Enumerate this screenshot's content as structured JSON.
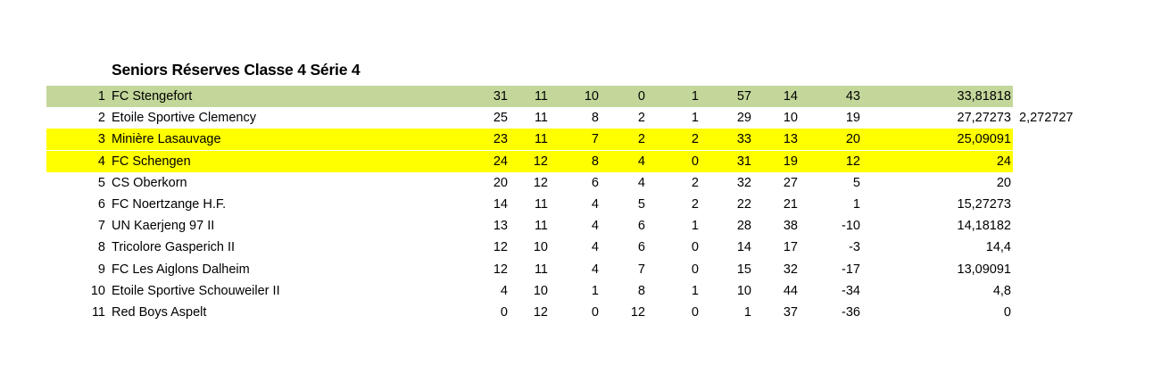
{
  "title": "Seniors Réserves Classe 4 Série 4",
  "colors": {
    "leader": "#c4d79b",
    "highlight": "#ffff00"
  },
  "rows": [
    {
      "rank": "1",
      "team": "FC Stengefort",
      "c1": "31",
      "c2": "11",
      "c3": "10",
      "c4": "0",
      "c5": "1",
      "c6": "57",
      "c7": "14",
      "c8": "43",
      "c9": "33,81818",
      "highlight": "green"
    },
    {
      "rank": "2",
      "team": "Etoile Sportive Clemency",
      "c1": "25",
      "c2": "11",
      "c3": "8",
      "c4": "2",
      "c5": "1",
      "c6": "29",
      "c7": "10",
      "c8": "19",
      "c9": "27,27273",
      "extra": "2,272727"
    },
    {
      "rank": "3",
      "team": "Minière Lasauvage",
      "c1": "23",
      "c2": "11",
      "c3": "7",
      "c4": "2",
      "c5": "2",
      "c6": "33",
      "c7": "13",
      "c8": "20",
      "c9": "25,09091",
      "highlight": "yellow"
    },
    {
      "rank": "4",
      "team": "FC Schengen",
      "c1": "24",
      "c2": "12",
      "c3": "8",
      "c4": "4",
      "c5": "0",
      "c6": "31",
      "c7": "19",
      "c8": "12",
      "c9": "24",
      "highlight": "yellow"
    },
    {
      "rank": "5",
      "team": "CS Oberkorn",
      "c1": "20",
      "c2": "12",
      "c3": "6",
      "c4": "4",
      "c5": "2",
      "c6": "32",
      "c7": "27",
      "c8": "5",
      "c9": "20"
    },
    {
      "rank": "6",
      "team": "FC Noertzange H.F.",
      "c1": "14",
      "c2": "11",
      "c3": "4",
      "c4": "5",
      "c5": "2",
      "c6": "22",
      "c7": "21",
      "c8": "1",
      "c9": "15,27273"
    },
    {
      "rank": "7",
      "team": "UN Kaerjeng 97 II",
      "c1": "13",
      "c2": "11",
      "c3": "4",
      "c4": "6",
      "c5": "1",
      "c6": "28",
      "c7": "38",
      "c8": "-10",
      "c9": "14,18182"
    },
    {
      "rank": "8",
      "team": "Tricolore Gasperich II",
      "c1": "12",
      "c2": "10",
      "c3": "4",
      "c4": "6",
      "c5": "0",
      "c6": "14",
      "c7": "17",
      "c8": "-3",
      "c9": "14,4"
    },
    {
      "rank": "9",
      "team": "FC Les Aiglons Dalheim",
      "c1": "12",
      "c2": "11",
      "c3": "4",
      "c4": "7",
      "c5": "0",
      "c6": "15",
      "c7": "32",
      "c8": "-17",
      "c9": "13,09091"
    },
    {
      "rank": "10",
      "team": "Etoile Sportive Schouweiler II",
      "c1": "4",
      "c2": "10",
      "c3": "1",
      "c4": "8",
      "c5": "1",
      "c6": "10",
      "c7": "44",
      "c8": "-34",
      "c9": "4,8"
    },
    {
      "rank": "11",
      "team": "Red Boys Aspelt",
      "c1": "0",
      "c2": "12",
      "c3": "0",
      "c4": "12",
      "c5": "0",
      "c6": "1",
      "c7": "37",
      "c8": "-36",
      "c9": "0"
    }
  ]
}
